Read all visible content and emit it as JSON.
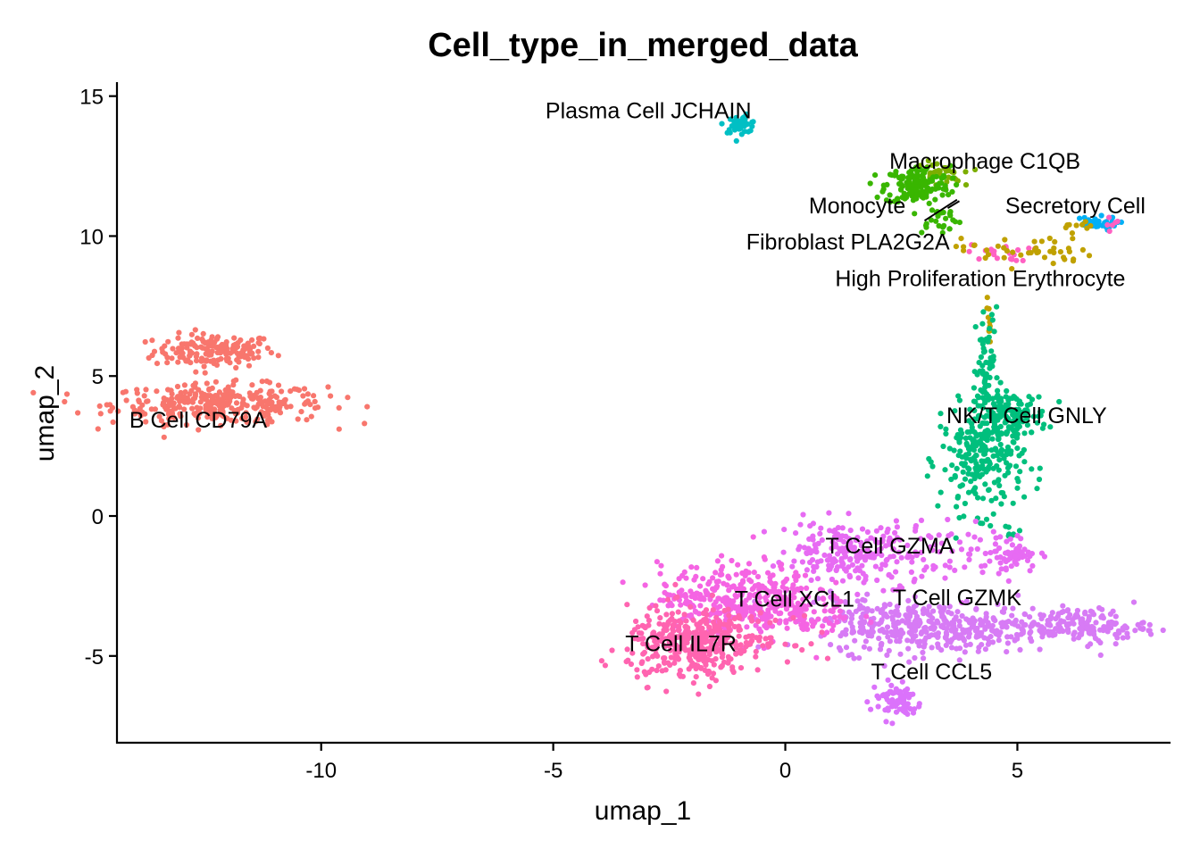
{
  "chart_data": {
    "type": "scatter",
    "title": "Cell_type_in_merged_data",
    "xlabel": "umap_1",
    "ylabel": "umap_2",
    "xlim": [
      -14.4,
      8.3
    ],
    "ylim": [
      -8.1,
      15.5
    ],
    "x_ticks": [
      -10,
      -5,
      0,
      5
    ],
    "y_ticks": [
      -5,
      0,
      5,
      10,
      15
    ],
    "x_tick_labels": [
      "-10",
      "-5",
      "0",
      "5"
    ],
    "y_tick_labels": [
      "-5",
      "0",
      "5",
      "10",
      "15"
    ],
    "legend": "none",
    "grid": false,
    "series": [
      {
        "name": "B Cell CD79A",
        "color": "#F8766D",
        "regions": [
          {
            "cx": -12.3,
            "cy": 5.9,
            "sx": 0.65,
            "sy": 0.3,
            "n": 160
          },
          {
            "cx": -12.2,
            "cy": 4.0,
            "sx": 1.15,
            "sy": 0.35,
            "n": 330
          }
        ]
      },
      {
        "name": "Plasma Cell JCHAIN",
        "color": "#00BFC4",
        "regions": [
          {
            "cx": -0.95,
            "cy": 14.0,
            "sx": 0.18,
            "sy": 0.15,
            "n": 40
          }
        ]
      },
      {
        "name": "Macrophage C1QB",
        "color": "#7CAE00",
        "regions": [
          {
            "cx": 3.3,
            "cy": 12.2,
            "sx": 0.25,
            "sy": 0.22,
            "n": 40
          }
        ]
      },
      {
        "name": "Monocyte",
        "color": "#39B600",
        "regions": [
          {
            "cx": 2.85,
            "cy": 11.8,
            "sx": 0.35,
            "sy": 0.35,
            "n": 150
          },
          {
            "cx": 3.3,
            "cy": 10.6,
            "sx": 0.25,
            "sy": 0.25,
            "n": 25
          }
        ]
      },
      {
        "name": "Secretory Cell",
        "color": "#00B0F6",
        "regions": [
          {
            "cx": 6.65,
            "cy": 10.45,
            "sx": 0.25,
            "sy": 0.12,
            "n": 35
          }
        ]
      },
      {
        "name": "Fibroblast PLA2G2A",
        "color": "#FF61C3",
        "regions": [
          {
            "cx": 4.6,
            "cy": 9.4,
            "sx": 0.35,
            "sy": 0.15,
            "n": 20
          },
          {
            "cx": 7.0,
            "cy": 10.4,
            "sx": 0.12,
            "sy": 0.15,
            "n": 6
          }
        ]
      },
      {
        "name": "High Proliferation Erythrocyte",
        "color": "#C0A100",
        "regions": [
          {
            "cx": 5.2,
            "cy": 9.5,
            "sx": 0.7,
            "sy": 0.3,
            "n": 45
          },
          {
            "cx": 6.3,
            "cy": 10.3,
            "sx": 0.2,
            "sy": 0.1,
            "n": 8
          },
          {
            "cx": 4.4,
            "cy": 7.0,
            "sx": 0.05,
            "sy": 0.5,
            "n": 10
          }
        ]
      },
      {
        "name": "NK/T Cell GNLY",
        "color": "#00BF7D",
        "regions": [
          {
            "cx": 4.35,
            "cy": 5.0,
            "sx": 0.12,
            "sy": 1.2,
            "n": 70
          },
          {
            "cx": 4.85,
            "cy": 3.6,
            "sx": 0.4,
            "sy": 0.4,
            "n": 140
          },
          {
            "cx": 4.25,
            "cy": 2.0,
            "sx": 0.45,
            "sy": 0.95,
            "n": 230
          },
          {
            "cx": 4.9,
            "cy": -0.6,
            "sx": 0.15,
            "sy": 0.15,
            "n": 6
          }
        ]
      },
      {
        "name": "T Cell GZMA",
        "color": "#E76BF3",
        "regions": [
          {
            "cx": 1.2,
            "cy": -1.2,
            "sx": 0.55,
            "sy": 0.5,
            "n": 140
          },
          {
            "cx": 2.3,
            "cy": -1.6,
            "sx": 0.9,
            "sy": 0.7,
            "n": 120
          },
          {
            "cx": 4.8,
            "cy": -1.3,
            "sx": 0.35,
            "sy": 0.35,
            "n": 60
          }
        ]
      },
      {
        "name": "T Cell GZMK",
        "color": "#D77BF5",
        "regions": [
          {
            "cx": 3.4,
            "cy": -4.0,
            "sx": 1.2,
            "sy": 0.45,
            "n": 350
          },
          {
            "cx": 6.4,
            "cy": -3.9,
            "sx": 0.7,
            "sy": 0.3,
            "n": 150
          },
          {
            "cx": 1.6,
            "cy": -3.6,
            "sx": 0.6,
            "sy": 0.5,
            "n": 70
          }
        ]
      },
      {
        "name": "T Cell CCL5",
        "color": "#DB72FB",
        "regions": [
          {
            "cx": 2.4,
            "cy": -6.6,
            "sx": 0.28,
            "sy": 0.35,
            "n": 70
          }
        ]
      },
      {
        "name": "T Cell XCL1",
        "color": "#F564E3",
        "regions": [
          {
            "cx": -1.0,
            "cy": -2.9,
            "sx": 0.85,
            "sy": 0.6,
            "n": 330
          },
          {
            "cx": 0.3,
            "cy": -3.5,
            "sx": 0.6,
            "sy": 0.5,
            "n": 80
          }
        ]
      },
      {
        "name": "T Cell IL7R",
        "color": "#FF64B0",
        "regions": [
          {
            "cx": -2.1,
            "cy": -4.6,
            "sx": 0.65,
            "sy": 0.65,
            "n": 330
          },
          {
            "cx": -1.0,
            "cy": -4.4,
            "sx": 0.6,
            "sy": 0.4,
            "n": 80
          }
        ]
      }
    ],
    "labels": [
      {
        "text": "Plasma Cell JCHAIN",
        "x": -2.95,
        "y": 14.5
      },
      {
        "text": "Macrophage C1QB",
        "x": 4.3,
        "y": 12.7
      },
      {
        "text": "Monocyte",
        "x": 1.55,
        "y": 11.1
      },
      {
        "text": "Secretory Cell",
        "x": 6.25,
        "y": 11.1
      },
      {
        "text": "Fibroblast PLA2G2A",
        "x": 1.35,
        "y": 9.8
      },
      {
        "text": "High Proliferation Erythrocyte",
        "x": 4.2,
        "y": 8.5
      },
      {
        "text": "B Cell CD79A",
        "x": -12.65,
        "y": 3.45
      },
      {
        "text": "NK/T Cell GNLY",
        "x": 5.2,
        "y": 3.6
      },
      {
        "text": "T Cell GZMA",
        "x": 2.25,
        "y": -1.05
      },
      {
        "text": "T Cell XCL1",
        "x": 0.2,
        "y": -2.95
      },
      {
        "text": "T Cell GZMK",
        "x": 3.7,
        "y": -2.9
      },
      {
        "text": "T Cell IL7R",
        "x": -2.25,
        "y": -4.55
      },
      {
        "text": "T Cell CCL5",
        "x": 3.15,
        "y": -5.55
      }
    ],
    "leader_lines": [
      {
        "x1": 3.0,
        "y1": 10.55,
        "x2": 3.7,
        "y2": 11.3
      },
      {
        "x1": 3.5,
        "y1": 11.0,
        "x2": 3.75,
        "y2": 11.25
      }
    ]
  }
}
